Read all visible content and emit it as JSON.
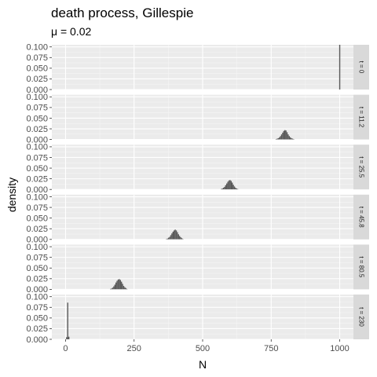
{
  "chart_data": {
    "type": "bar",
    "chart_kind": "faceted histogram",
    "title": "death process, Gillespie",
    "subtitle": "μ = 0.02",
    "xlabel": "N",
    "ylabel": "density",
    "xlim": [
      -50,
      1050
    ],
    "ylim": [
      0,
      0.105
    ],
    "x_ticks": [
      0,
      250,
      500,
      750,
      1000
    ],
    "y_ticks": [
      0.0,
      0.025,
      0.05,
      0.075,
      0.1
    ],
    "y_tick_labels": [
      "0.000",
      "0.025",
      "0.050",
      "0.075",
      "0.100"
    ],
    "grid": true,
    "bin_width": 4,
    "bar_color": "#595959",
    "panel_background": "#ebebeb",
    "strip_background": "#d9d9d9",
    "facets": [
      {
        "label": "t = 0",
        "bins": [
          {
            "x": 1000,
            "density": 0.25
          }
        ]
      },
      {
        "label": "t = 11.2",
        "bins": [
          {
            "x": 768,
            "density": 0.001
          },
          {
            "x": 772,
            "density": 0.002
          },
          {
            "x": 776,
            "density": 0.003
          },
          {
            "x": 780,
            "density": 0.005
          },
          {
            "x": 784,
            "density": 0.008
          },
          {
            "x": 788,
            "density": 0.012
          },
          {
            "x": 792,
            "density": 0.016
          },
          {
            "x": 796,
            "density": 0.02
          },
          {
            "x": 800,
            "density": 0.022
          },
          {
            "x": 804,
            "density": 0.021
          },
          {
            "x": 808,
            "density": 0.017
          },
          {
            "x": 812,
            "density": 0.012
          },
          {
            "x": 816,
            "density": 0.008
          },
          {
            "x": 820,
            "density": 0.005
          },
          {
            "x": 824,
            "density": 0.003
          },
          {
            "x": 828,
            "density": 0.002
          },
          {
            "x": 832,
            "density": 0.001
          }
        ]
      },
      {
        "label": "t = 25.5",
        "bins": [
          {
            "x": 568,
            "density": 0.001
          },
          {
            "x": 572,
            "density": 0.002
          },
          {
            "x": 576,
            "density": 0.004
          },
          {
            "x": 580,
            "density": 0.006
          },
          {
            "x": 584,
            "density": 0.01
          },
          {
            "x": 588,
            "density": 0.014
          },
          {
            "x": 592,
            "density": 0.018
          },
          {
            "x": 596,
            "density": 0.021
          },
          {
            "x": 600,
            "density": 0.022
          },
          {
            "x": 604,
            "density": 0.02
          },
          {
            "x": 608,
            "density": 0.016
          },
          {
            "x": 612,
            "density": 0.011
          },
          {
            "x": 616,
            "density": 0.007
          },
          {
            "x": 620,
            "density": 0.004
          },
          {
            "x": 624,
            "density": 0.002
          },
          {
            "x": 628,
            "density": 0.001
          }
        ]
      },
      {
        "label": "t = 45.8",
        "bins": [
          {
            "x": 368,
            "density": 0.001
          },
          {
            "x": 372,
            "density": 0.002
          },
          {
            "x": 376,
            "density": 0.004
          },
          {
            "x": 380,
            "density": 0.006
          },
          {
            "x": 384,
            "density": 0.01
          },
          {
            "x": 388,
            "density": 0.014
          },
          {
            "x": 392,
            "density": 0.018
          },
          {
            "x": 396,
            "density": 0.021
          },
          {
            "x": 400,
            "density": 0.023
          },
          {
            "x": 404,
            "density": 0.021
          },
          {
            "x": 408,
            "density": 0.017
          },
          {
            "x": 412,
            "density": 0.012
          },
          {
            "x": 416,
            "density": 0.008
          },
          {
            "x": 420,
            "density": 0.005
          },
          {
            "x": 424,
            "density": 0.003
          },
          {
            "x": 428,
            "density": 0.001
          }
        ]
      },
      {
        "label": "t = 80.5",
        "bins": [
          {
            "x": 164,
            "density": 0.001
          },
          {
            "x": 168,
            "density": 0.002
          },
          {
            "x": 172,
            "density": 0.004
          },
          {
            "x": 176,
            "density": 0.007
          },
          {
            "x": 180,
            "density": 0.011
          },
          {
            "x": 184,
            "density": 0.016
          },
          {
            "x": 188,
            "density": 0.02
          },
          {
            "x": 192,
            "density": 0.023
          },
          {
            "x": 196,
            "density": 0.024
          },
          {
            "x": 200,
            "density": 0.022
          },
          {
            "x": 204,
            "density": 0.018
          },
          {
            "x": 208,
            "density": 0.013
          },
          {
            "x": 212,
            "density": 0.008
          },
          {
            "x": 216,
            "density": 0.005
          },
          {
            "x": 220,
            "density": 0.003
          },
          {
            "x": 224,
            "density": 0.001
          }
        ]
      },
      {
        "label": "t = 230",
        "bins": [
          {
            "x": 4,
            "density": 0.005
          },
          {
            "x": 8,
            "density": 0.086
          },
          {
            "x": 12,
            "density": 0.006
          }
        ]
      }
    ]
  }
}
